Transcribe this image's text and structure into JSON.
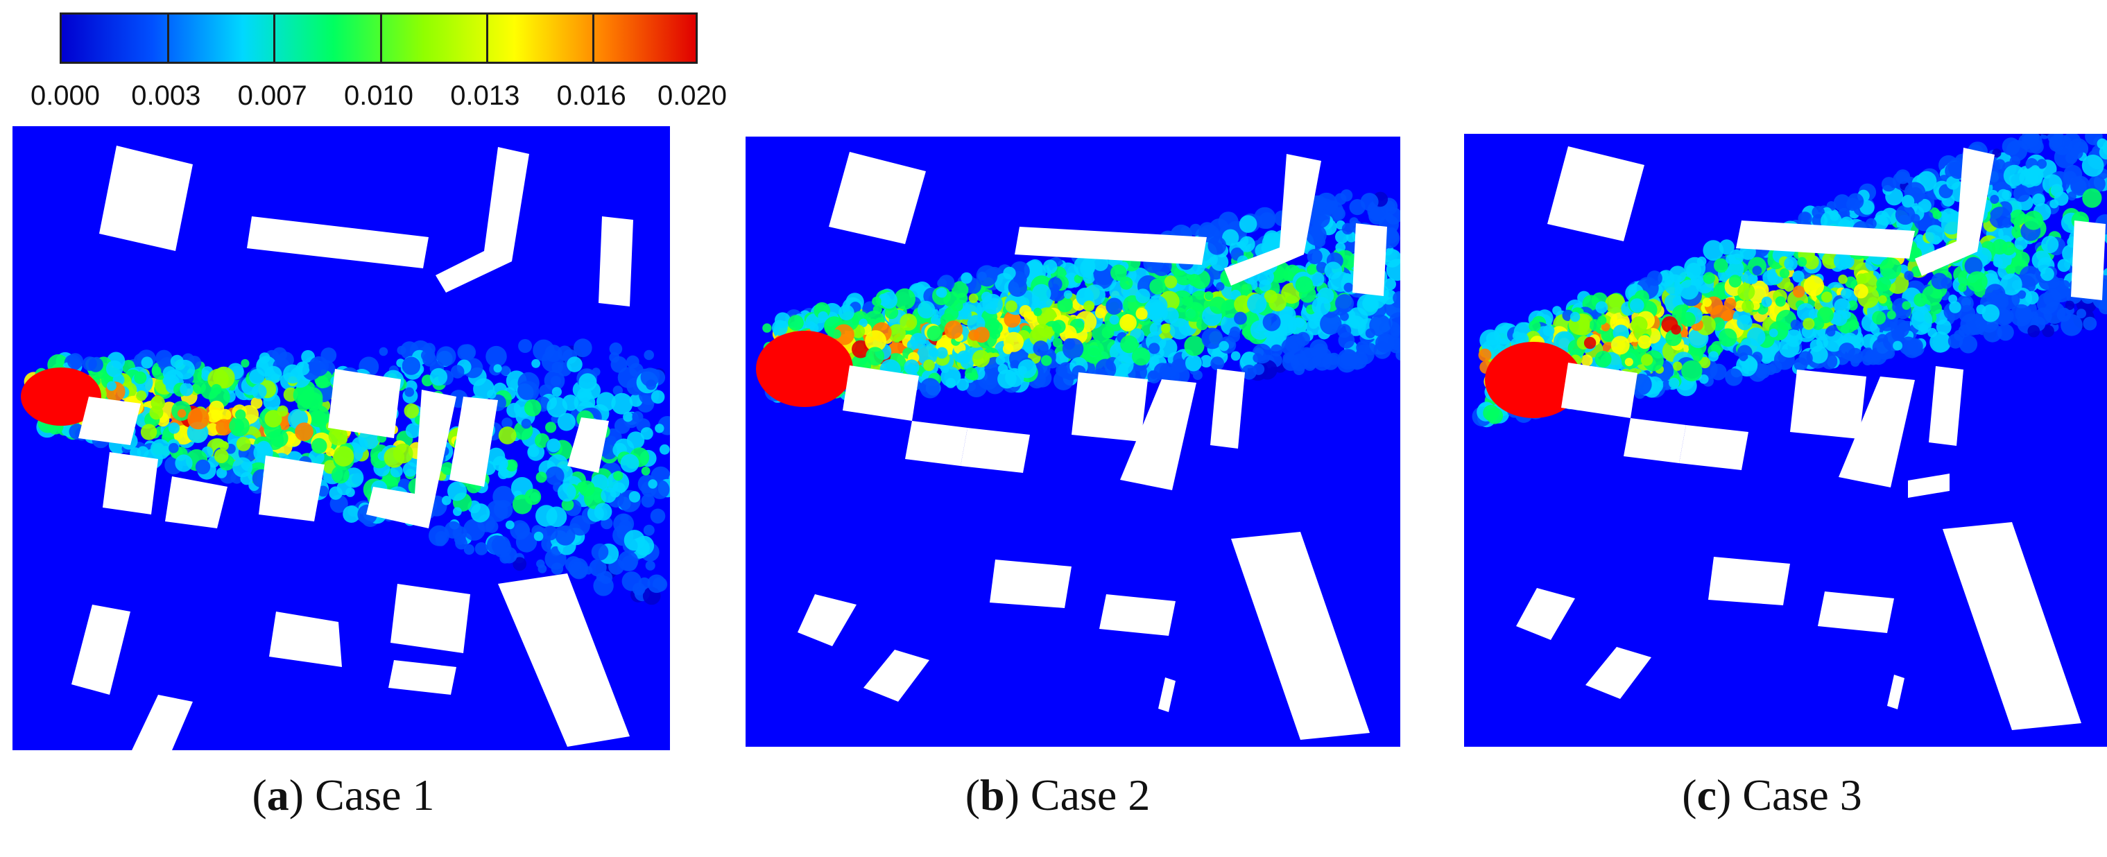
{
  "chart_data": {
    "type": "heatmap",
    "colorbar": {
      "min": 0.0,
      "max": 0.02,
      "ticks": [
        "0.000",
        "0.003",
        "0.007",
        "0.010",
        "0.013",
        "0.016",
        "0.020"
      ],
      "colors": [
        "#0000d0",
        "#0050ff",
        "#00d8ff",
        "#00ff60",
        "#90ff00",
        "#ffff00",
        "#ff8000",
        "#e00000"
      ],
      "orientation": "horizontal",
      "placement": "top-left"
    },
    "background_value": 0.0,
    "panels": [
      {
        "letter": "a",
        "label": "Case 1",
        "source": "left",
        "max_value": 0.02
      },
      {
        "letter": "b",
        "label": "Case 2",
        "source": "left",
        "max_value": 0.02
      },
      {
        "letter": "c",
        "label": "Case 3",
        "source": "left",
        "max_value": 0.02
      }
    ]
  },
  "colors": {
    "field_background": "#0000ff",
    "building": "#ffffff",
    "high": "#ff0000"
  }
}
